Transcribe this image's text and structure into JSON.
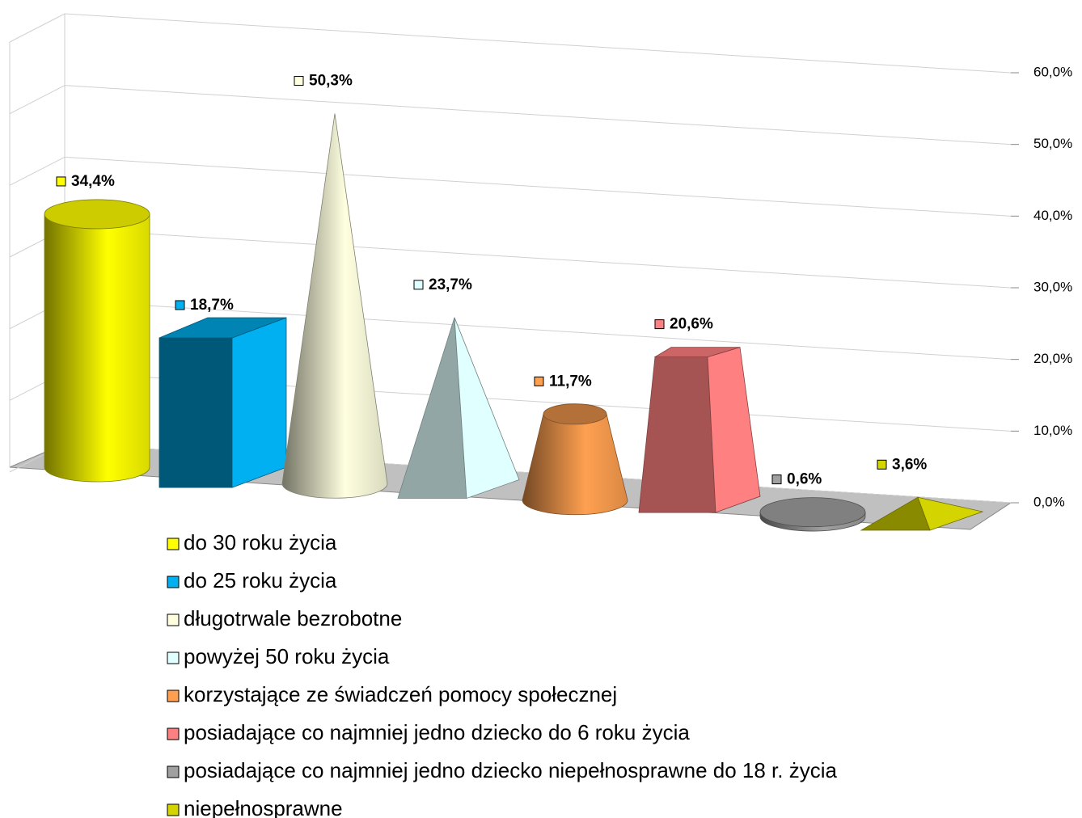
{
  "chart_data": {
    "type": "bar",
    "series": [
      {
        "name": "do 30 roku życia",
        "color": "#ffff00",
        "shape": "cylinder",
        "values": [
          34.4
        ],
        "value_labels": [
          "34,4%"
        ]
      },
      {
        "name": "do 25 roku życia",
        "color": "#00b0f0",
        "shape": "box",
        "values": [
          18.7
        ],
        "value_labels": [
          "18,7%"
        ]
      },
      {
        "name": "długotrwale bezrobotne",
        "color": "#ffffe0",
        "shape": "cone",
        "values": [
          50.3
        ],
        "value_labels": [
          "50,3%"
        ]
      },
      {
        "name": "powyżej 50 roku życia",
        "color": "#e0ffff",
        "shape": "pyramid",
        "values": [
          23.7
        ],
        "value_labels": [
          "23,7%"
        ]
      },
      {
        "name": "korzystające ze świadczeń pomocy społecznej",
        "color": "#ffa050",
        "shape": "cone-frustum",
        "values": [
          11.7
        ],
        "value_labels": [
          "11,7%"
        ]
      },
      {
        "name": "posiadające co najmniej jedno dziecko do 6 roku życia",
        "color": "#ff8080",
        "shape": "pyramid-frustum",
        "values": [
          20.6
        ],
        "value_labels": [
          "20,6%"
        ]
      },
      {
        "name": "posiadające co najmniej jedno dziecko niepełnosprawne do 18 r. życia",
        "color": "#a0a0a0",
        "shape": "cylinder",
        "values": [
          0.6
        ],
        "value_labels": [
          "0,6%"
        ]
      },
      {
        "name": "niepełnosprawne",
        "color": "#d4d400",
        "shape": "pyramid",
        "values": [
          3.6
        ],
        "value_labels": [
          "3,6%"
        ]
      }
    ],
    "ylim": [
      0,
      60
    ],
    "yticks": [
      {
        "value": 0,
        "label": "0,0%"
      },
      {
        "value": 10,
        "label": "10,0%"
      },
      {
        "value": 20,
        "label": "20,0%"
      },
      {
        "value": 30,
        "label": "30,0%"
      },
      {
        "value": 40,
        "label": "40,0%"
      },
      {
        "value": 50,
        "label": "50,0%"
      },
      {
        "value": 60,
        "label": "60,0%"
      }
    ],
    "grid": true
  }
}
